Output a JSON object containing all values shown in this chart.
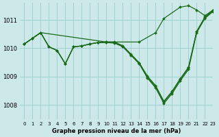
{
  "background_color": "#cce8e8",
  "grid_color": "#99cccc",
  "line_color": "#1a6b1a",
  "marker_color": "#1a6b1a",
  "xlabel": "Graphe pression niveau de la mer (hPa)",
  "xlim": [
    -0.5,
    23
  ],
  "ylim": [
    1007.5,
    1011.6
  ],
  "yticks": [
    1008,
    1009,
    1010,
    1011
  ],
  "xticks": [
    0,
    1,
    2,
    3,
    4,
    5,
    6,
    7,
    8,
    9,
    10,
    11,
    12,
    13,
    14,
    15,
    16,
    17,
    18,
    19,
    20,
    21,
    22,
    23
  ],
  "series": [
    {
      "x": [
        0,
        1,
        2,
        3,
        4,
        5,
        6,
        7,
        8,
        9,
        10,
        11,
        12,
        13,
        14,
        15,
        16,
        17,
        18,
        19,
        20,
        21,
        22,
        23
      ],
      "y": [
        1010.15,
        1010.35,
        1010.55,
        1010.1,
        1010.0,
        1009.45,
        1010.05,
        1010.1,
        1010.15,
        1010.2,
        1010.22,
        1010.2,
        1010.05,
        1009.75,
        1009.45,
        1008.95,
        1008.6,
        1008.05,
        1008.4,
        1008.85,
        1009.25,
        1010.55,
        1011.05,
        1011.3
      ]
    },
    {
      "x": [
        0,
        1,
        2,
        3,
        4,
        5,
        6,
        7,
        8,
        9,
        10,
        11,
        12,
        13,
        14,
        15,
        16,
        17,
        18,
        19,
        20,
        21,
        22,
        23
      ],
      "y": [
        1010.15,
        1010.35,
        1010.55,
        1010.05,
        1009.95,
        1009.45,
        1010.05,
        1010.1,
        1010.15,
        1010.2,
        1010.22,
        1010.22,
        1010.08,
        1009.8,
        1009.5,
        1009.0,
        1008.65,
        1008.1,
        1008.45,
        1008.92,
        1009.32,
        1010.6,
        1011.1,
        1011.35
      ]
    },
    {
      "x": [
        0,
        1,
        2,
        3,
        4,
        5,
        6,
        7,
        8,
        9,
        10,
        11,
        12,
        13,
        14,
        15,
        16,
        17,
        18,
        19,
        20,
        21,
        22,
        23
      ],
      "y": [
        1010.15,
        1010.35,
        1010.55,
        1010.05,
        1009.95,
        1009.45,
        1010.05,
        1010.1,
        1010.15,
        1010.2,
        1010.22,
        1010.22,
        1010.08,
        1009.8,
        1009.5,
        1009.05,
        1008.7,
        1008.15,
        1008.5,
        1008.95,
        1009.35,
        1010.62,
        1011.12,
        1011.37
      ]
    },
    {
      "x": [
        0,
        2,
        10,
        14,
        16,
        17,
        18,
        19,
        20,
        21,
        22,
        23
      ],
      "y": [
        1010.15,
        1010.55,
        1010.22,
        1010.22,
        1010.5,
        1011.0,
        1011.3,
        1011.45,
        1011.5,
        1011.35,
        1011.15,
        1011.35
      ]
    }
  ]
}
